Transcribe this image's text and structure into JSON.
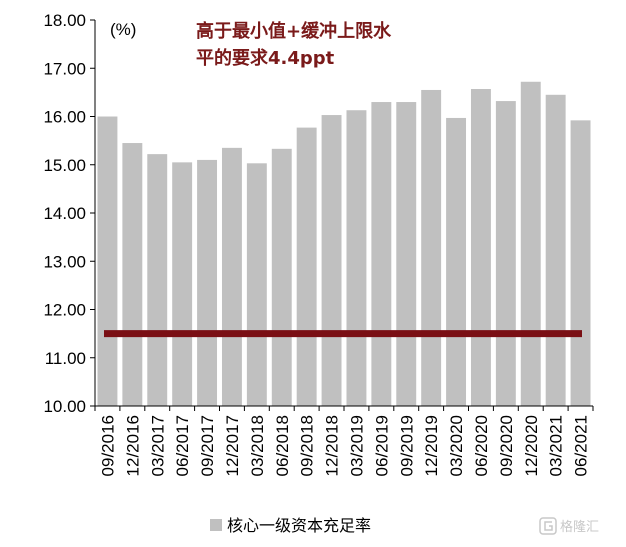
{
  "chart_data": {
    "type": "bar",
    "unit_label": "(%)",
    "categories": [
      "09/2016",
      "12/2016",
      "03/2017",
      "06/2017",
      "09/2017",
      "12/2017",
      "03/2018",
      "06/2018",
      "09/2018",
      "12/2018",
      "03/2019",
      "06/2019",
      "09/2019",
      "12/2019",
      "03/2020",
      "06/2020",
      "09/2020",
      "12/2020",
      "03/2021",
      "06/2021"
    ],
    "series": [
      {
        "name": "核心一级资本充足率",
        "color": "#c0c0c0",
        "values": [
          16.0,
          15.45,
          15.22,
          15.05,
          15.1,
          15.35,
          15.03,
          15.33,
          15.77,
          16.03,
          16.13,
          16.3,
          16.3,
          16.55,
          15.97,
          16.57,
          16.32,
          16.72,
          16.45,
          15.92
        ]
      }
    ],
    "reference_line": {
      "value": 11.5,
      "color": "#7a0f14"
    },
    "annotation": {
      "lines": [
        "高于最小值+缓冲上限水",
        "平的要求4.4ppt"
      ],
      "color": "#7a1a1a"
    },
    "ylim": [
      10.0,
      18.0
    ],
    "yticks": [
      "10.00",
      "11.00",
      "12.00",
      "13.00",
      "14.00",
      "15.00",
      "16.00",
      "17.00",
      "18.00"
    ],
    "grid": false,
    "legend_position": "bottom"
  },
  "watermark": {
    "icon": "gelonghui-logo-icon",
    "text": "格隆汇"
  }
}
